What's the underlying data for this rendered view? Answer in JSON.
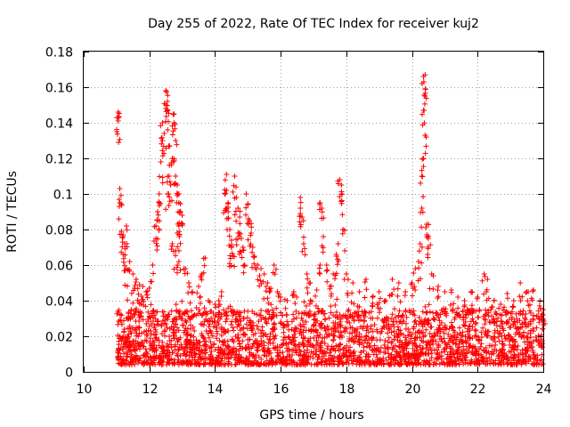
{
  "chart_data": {
    "type": "scatter",
    "title": "Day 255 of 2022, Rate Of TEC Index for receiver kuj2",
    "xlabel": "GPS time / hours",
    "ylabel": "ROTI / TECUs",
    "xlim": [
      10,
      24
    ],
    "ylim": [
      0,
      0.18
    ],
    "x_ticks": [
      "10",
      "12",
      "14",
      "16",
      "18",
      "20",
      "22",
      "24"
    ],
    "y_ticks": [
      "0",
      "0.02",
      "0.04",
      "0.06",
      "0.08",
      "0.1",
      "0.12",
      "0.14",
      "0.16",
      "0.18"
    ],
    "grid": true,
    "marker": "+",
    "color": "#ff0000",
    "series": [
      {
        "name": "ROTI",
        "points": [
          [
            11.05,
            0.146
          ],
          [
            11.05,
            0.143
          ],
          [
            11.05,
            0.141
          ],
          [
            11.1,
            0.103
          ],
          [
            11.1,
            0.095
          ],
          [
            11.15,
            0.079
          ],
          [
            11.2,
            0.077
          ],
          [
            11.3,
            0.082
          ],
          [
            11.25,
            0.072
          ],
          [
            11.2,
            0.066
          ],
          [
            11.3,
            0.058
          ],
          [
            11.4,
            0.062
          ],
          [
            11.5,
            0.055
          ],
          [
            11.6,
            0.052
          ],
          [
            11.7,
            0.049
          ],
          [
            11.8,
            0.048
          ],
          [
            11.9,
            0.045
          ],
          [
            12.0,
            0.047
          ],
          [
            12.1,
            0.06
          ],
          [
            12.2,
            0.075
          ],
          [
            12.2,
            0.082
          ],
          [
            12.25,
            0.09
          ],
          [
            12.3,
            0.095
          ],
          [
            12.3,
            0.1
          ],
          [
            12.35,
            0.118
          ],
          [
            12.4,
            0.13
          ],
          [
            12.45,
            0.134
          ],
          [
            12.4,
            0.14
          ],
          [
            12.5,
            0.148
          ],
          [
            12.5,
            0.15
          ],
          [
            12.55,
            0.152
          ],
          [
            12.5,
            0.158
          ],
          [
            12.6,
            0.127
          ],
          [
            12.6,
            0.11
          ],
          [
            12.55,
            0.1
          ],
          [
            12.65,
            0.105
          ],
          [
            12.7,
            0.12
          ],
          [
            12.75,
            0.145
          ],
          [
            12.75,
            0.14
          ],
          [
            12.8,
            0.13
          ],
          [
            12.8,
            0.11
          ],
          [
            12.85,
            0.105
          ],
          [
            12.9,
            0.1
          ],
          [
            12.9,
            0.095
          ],
          [
            12.95,
            0.09
          ],
          [
            13.0,
            0.088
          ],
          [
            12.9,
            0.082
          ],
          [
            12.85,
            0.078
          ],
          [
            12.7,
            0.072
          ],
          [
            12.8,
            0.068
          ],
          [
            12.9,
            0.062
          ],
          [
            13.1,
            0.058
          ],
          [
            13.2,
            0.05
          ],
          [
            13.3,
            0.045
          ],
          [
            13.5,
            0.048
          ],
          [
            13.7,
            0.064
          ],
          [
            13.6,
            0.055
          ],
          [
            13.8,
            0.04
          ],
          [
            14.0,
            0.038
          ],
          [
            14.2,
            0.045
          ],
          [
            14.3,
            0.1
          ],
          [
            14.35,
            0.111
          ],
          [
            14.35,
            0.102
          ],
          [
            14.4,
            0.095
          ],
          [
            14.4,
            0.09
          ],
          [
            14.45,
            0.08
          ],
          [
            14.5,
            0.074
          ],
          [
            14.5,
            0.07
          ],
          [
            14.55,
            0.065
          ],
          [
            14.6,
            0.11
          ],
          [
            14.65,
            0.098
          ],
          [
            14.7,
            0.092
          ],
          [
            14.75,
            0.087
          ],
          [
            14.7,
            0.078
          ],
          [
            14.8,
            0.075
          ],
          [
            14.85,
            0.07
          ],
          [
            14.9,
            0.06
          ],
          [
            14.95,
            0.1
          ],
          [
            15.0,
            0.094
          ],
          [
            15.05,
            0.085
          ],
          [
            15.1,
            0.078
          ],
          [
            15.15,
            0.07
          ],
          [
            15.2,
            0.065
          ],
          [
            15.3,
            0.06
          ],
          [
            15.4,
            0.058
          ],
          [
            15.5,
            0.055
          ],
          [
            15.6,
            0.05
          ],
          [
            15.7,
            0.047
          ],
          [
            15.8,
            0.06
          ],
          [
            15.9,
            0.045
          ],
          [
            16.0,
            0.042
          ],
          [
            16.2,
            0.04
          ],
          [
            16.4,
            0.045
          ],
          [
            16.6,
            0.098
          ],
          [
            16.6,
            0.092
          ],
          [
            16.65,
            0.087
          ],
          [
            16.7,
            0.072
          ],
          [
            16.8,
            0.055
          ],
          [
            16.9,
            0.05
          ],
          [
            17.1,
            0.046
          ],
          [
            17.2,
            0.06
          ],
          [
            17.2,
            0.095
          ],
          [
            17.25,
            0.092
          ],
          [
            17.3,
            0.076
          ],
          [
            17.4,
            0.06
          ],
          [
            17.5,
            0.048
          ],
          [
            17.6,
            0.055
          ],
          [
            17.7,
            0.065
          ],
          [
            17.75,
            0.072
          ],
          [
            17.8,
            0.108
          ],
          [
            17.85,
            0.105
          ],
          [
            17.85,
            0.1
          ],
          [
            17.9,
            0.08
          ],
          [
            18.0,
            0.055
          ],
          [
            18.2,
            0.05
          ],
          [
            18.4,
            0.045
          ],
          [
            18.6,
            0.052
          ],
          [
            18.8,
            0.042
          ],
          [
            19.0,
            0.045
          ],
          [
            19.2,
            0.04
          ],
          [
            19.4,
            0.052
          ],
          [
            19.6,
            0.05
          ],
          [
            19.8,
            0.045
          ],
          [
            20.0,
            0.05
          ],
          [
            20.1,
            0.058
          ],
          [
            20.2,
            0.062
          ],
          [
            20.25,
            0.072
          ],
          [
            20.3,
            0.092
          ],
          [
            20.3,
            0.11
          ],
          [
            20.35,
            0.12
          ],
          [
            20.35,
            0.147
          ],
          [
            20.4,
            0.155
          ],
          [
            20.4,
            0.167
          ],
          [
            20.35,
            0.166
          ],
          [
            20.4,
            0.133
          ],
          [
            20.45,
            0.083
          ],
          [
            20.45,
            0.077
          ],
          [
            20.5,
            0.075
          ],
          [
            20.6,
            0.055
          ],
          [
            20.8,
            0.048
          ],
          [
            21.0,
            0.045
          ],
          [
            21.2,
            0.046
          ],
          [
            21.4,
            0.042
          ],
          [
            21.6,
            0.04
          ],
          [
            21.8,
            0.045
          ],
          [
            22.0,
            0.042
          ],
          [
            22.2,
            0.055
          ],
          [
            22.3,
            0.052
          ],
          [
            22.5,
            0.04
          ],
          [
            22.7,
            0.038
          ],
          [
            22.9,
            0.044
          ],
          [
            23.1,
            0.04
          ],
          [
            23.3,
            0.05
          ],
          [
            23.5,
            0.045
          ],
          [
            23.7,
            0.046
          ],
          [
            23.9,
            0.04
          ],
          [
            24.0,
            0.035
          ]
        ]
      }
    ],
    "dense_band": {
      "description_range_y": [
        0.004,
        0.035
      ],
      "x_range": [
        11.0,
        24.0
      ]
    }
  }
}
